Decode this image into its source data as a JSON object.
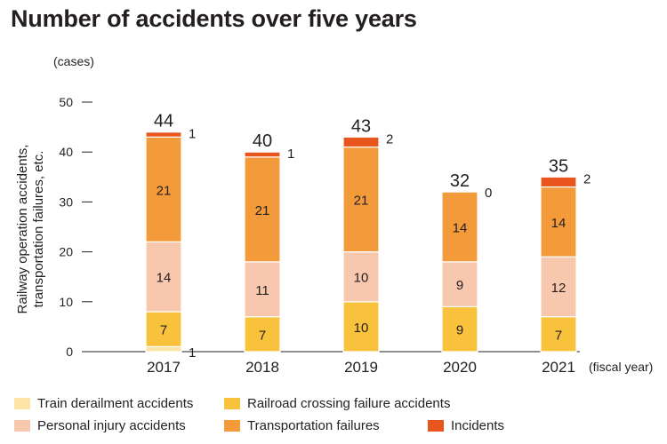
{
  "title": "Number of accidents over five years",
  "chart_data": {
    "type": "bar",
    "stacked": true,
    "unit_label": "(cases)",
    "ylabel": "Railway operation accidents, transportation failures, etc.",
    "xlabel": "(fiscal year)",
    "ylim": [
      0,
      50
    ],
    "yticks": [
      0,
      10,
      20,
      30,
      40,
      50
    ],
    "categories": [
      "2017",
      "2018",
      "2019",
      "2020",
      "2021"
    ],
    "totals": [
      44,
      40,
      43,
      32,
      35
    ],
    "series": [
      {
        "name": "Train derailment accidents",
        "color": "#fde4a6",
        "values": [
          1,
          0,
          0,
          0,
          0
        ]
      },
      {
        "name": "Railroad crossing failure accidents",
        "color": "#f9c23c",
        "values": [
          7,
          7,
          10,
          9,
          7
        ]
      },
      {
        "name": "Personal injury accidents",
        "color": "#f7c8ad",
        "values": [
          14,
          11,
          10,
          9,
          12
        ]
      },
      {
        "name": "Transportation failures",
        "color": "#f39a3a",
        "values": [
          21,
          21,
          21,
          14,
          14
        ]
      },
      {
        "name": "Incidents",
        "color": "#e8561e",
        "values": [
          1,
          1,
          2,
          0,
          2
        ]
      }
    ],
    "legend_position": "bottom",
    "grid": false
  }
}
